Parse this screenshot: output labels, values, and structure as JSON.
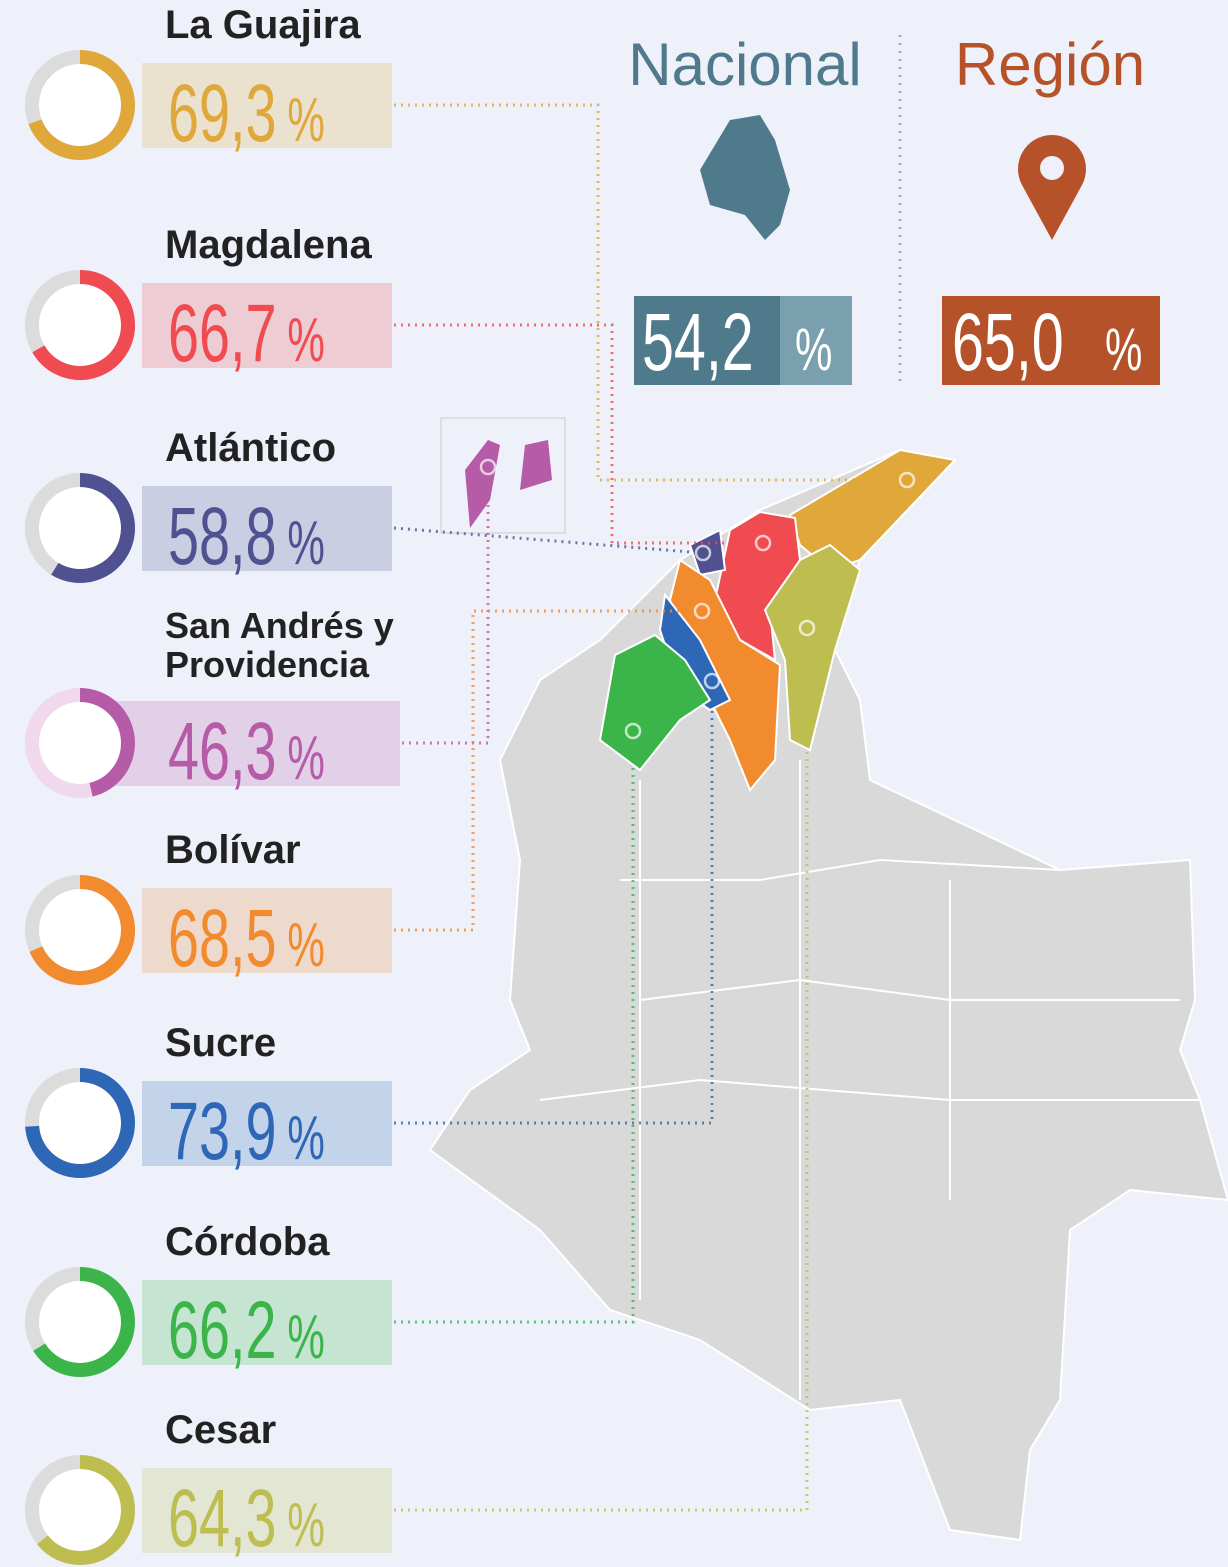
{
  "chart_data": {
    "type": "donut",
    "categories": [
      "La Guajira",
      "Magdalena",
      "Atlántico",
      "San Andrés y Providencia",
      "Bolívar",
      "Sucre",
      "Córdoba",
      "Cesar"
    ],
    "values": [
      69.3,
      66.7,
      58.8,
      46.3,
      68.5,
      73.9,
      66.2,
      64.3
    ],
    "value_labels": [
      "69,3",
      "66,7",
      "58,8",
      "46,3",
      "68,5",
      "73,9",
      "66,2",
      "64,3"
    ],
    "unit": "%",
    "ylim": [
      0,
      100
    ],
    "colors": [
      "#e0a83a",
      "#ef4b50",
      "#4f5190",
      "#b65ba7",
      "#f28a2e",
      "#2e67b5",
      "#3bb54a",
      "#bdbe4f"
    ]
  },
  "national": {
    "title": "Nacional",
    "value": 54.2,
    "label": "54,2",
    "unit": "%",
    "color": "#4e7a8c"
  },
  "region": {
    "title": "Región",
    "value": 65.0,
    "label": "65,0",
    "unit": "%",
    "color": "#b5522a"
  }
}
